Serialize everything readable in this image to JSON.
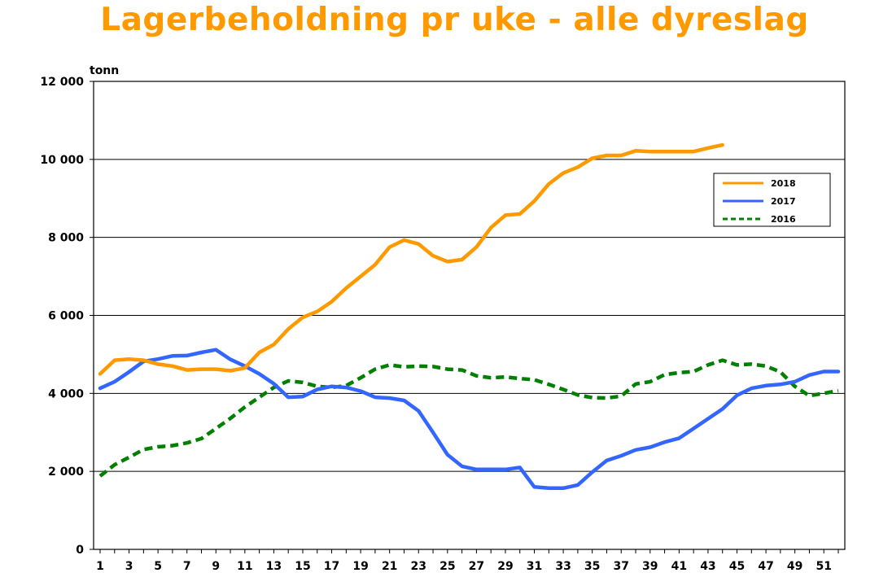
{
  "chart_data": {
    "type": "line",
    "title": "Lagerbeholdning pr uke - alle dyreslag",
    "ylabel": "tonn",
    "xlabel": "",
    "ylim": [
      0,
      12000
    ],
    "y_ticks": [
      0,
      2000,
      4000,
      6000,
      8000,
      10000,
      12000
    ],
    "y_tick_labels": [
      "0",
      "2 000",
      "4 000",
      "6 000",
      "8 000",
      "10 000",
      "12 000"
    ],
    "xlim": [
      1,
      52
    ],
    "x_ticks": [
      1,
      3,
      5,
      7,
      9,
      11,
      13,
      15,
      17,
      19,
      21,
      23,
      25,
      27,
      29,
      31,
      33,
      35,
      37,
      39,
      41,
      43,
      45,
      47,
      49,
      51
    ],
    "x_tick_labels": [
      "1",
      "3",
      "5",
      "7",
      "9",
      "11",
      "13",
      "15",
      "17",
      "19",
      "21",
      "23",
      "25",
      "27",
      "29",
      "31",
      "33",
      "35",
      "37",
      "39",
      "41",
      "43",
      "45",
      "47",
      "49",
      "51"
    ],
    "grid": "horizontal",
    "legend_position": "top-right",
    "series": [
      {
        "name": "2018",
        "color": "#FF9900",
        "style": "solid",
        "x": [
          1,
          2,
          3,
          4,
          5,
          6,
          7,
          8,
          9,
          10,
          11,
          12,
          13,
          14,
          15,
          16,
          17,
          18,
          19,
          20,
          21,
          22,
          23,
          24,
          25,
          26,
          27,
          28,
          29,
          30,
          31,
          32,
          33,
          34,
          35,
          36,
          37,
          38,
          39,
          40,
          41,
          42,
          43,
          44
        ],
        "values": [
          4500,
          4850,
          4880,
          4850,
          4750,
          4700,
          4600,
          4620,
          4620,
          4580,
          4650,
          5050,
          5250,
          5650,
          5950,
          6100,
          6350,
          6700,
          7000,
          7300,
          7750,
          7930,
          7830,
          7530,
          7380,
          7430,
          7750,
          8250,
          8570,
          8600,
          8930,
          9370,
          9650,
          9800,
          10030,
          10100,
          10100,
          10220,
          10200,
          10200,
          10200,
          10200,
          10290,
          10370
        ]
      },
      {
        "name": "2017",
        "color": "#3366FF",
        "style": "solid",
        "x": [
          1,
          2,
          3,
          4,
          5,
          6,
          7,
          8,
          9,
          10,
          11,
          12,
          13,
          14,
          15,
          16,
          17,
          18,
          19,
          20,
          21,
          22,
          23,
          24,
          25,
          26,
          27,
          28,
          29,
          30,
          31,
          32,
          33,
          34,
          35,
          36,
          37,
          38,
          39,
          40,
          41,
          42,
          43,
          44,
          45,
          46,
          47,
          48,
          49,
          50,
          51,
          52
        ],
        "values": [
          4130,
          4300,
          4550,
          4820,
          4880,
          4960,
          4970,
          5050,
          5120,
          4870,
          4700,
          4500,
          4250,
          3900,
          3920,
          4100,
          4180,
          4150,
          4060,
          3900,
          3880,
          3820,
          3550,
          3000,
          2430,
          2130,
          2050,
          2050,
          2050,
          2100,
          1600,
          1570,
          1570,
          1650,
          1980,
          2280,
          2400,
          2550,
          2620,
          2750,
          2850,
          3100,
          3350,
          3600,
          3950,
          4130,
          4200,
          4230,
          4300,
          4470,
          4560,
          4560
        ]
      },
      {
        "name": "2016",
        "color": "#008000",
        "style": "dashed",
        "x": [
          1,
          2,
          3,
          4,
          5,
          6,
          7,
          8,
          9,
          10,
          11,
          12,
          13,
          14,
          15,
          16,
          17,
          18,
          19,
          20,
          21,
          22,
          23,
          24,
          25,
          26,
          27,
          28,
          29,
          30,
          31,
          32,
          33,
          34,
          35,
          36,
          37,
          38,
          39,
          40,
          41,
          42,
          43,
          44,
          45,
          46,
          47,
          48,
          49,
          50,
          51,
          52
        ],
        "values": [
          1880,
          2170,
          2360,
          2560,
          2630,
          2660,
          2730,
          2840,
          3100,
          3360,
          3650,
          3900,
          4150,
          4320,
          4280,
          4180,
          4150,
          4200,
          4400,
          4620,
          4730,
          4680,
          4700,
          4690,
          4620,
          4600,
          4450,
          4400,
          4420,
          4380,
          4350,
          4230,
          4100,
          3960,
          3890,
          3880,
          3930,
          4240,
          4300,
          4480,
          4530,
          4560,
          4730,
          4850,
          4730,
          4750,
          4700,
          4550,
          4180,
          3940,
          4000,
          4070
        ]
      }
    ]
  }
}
